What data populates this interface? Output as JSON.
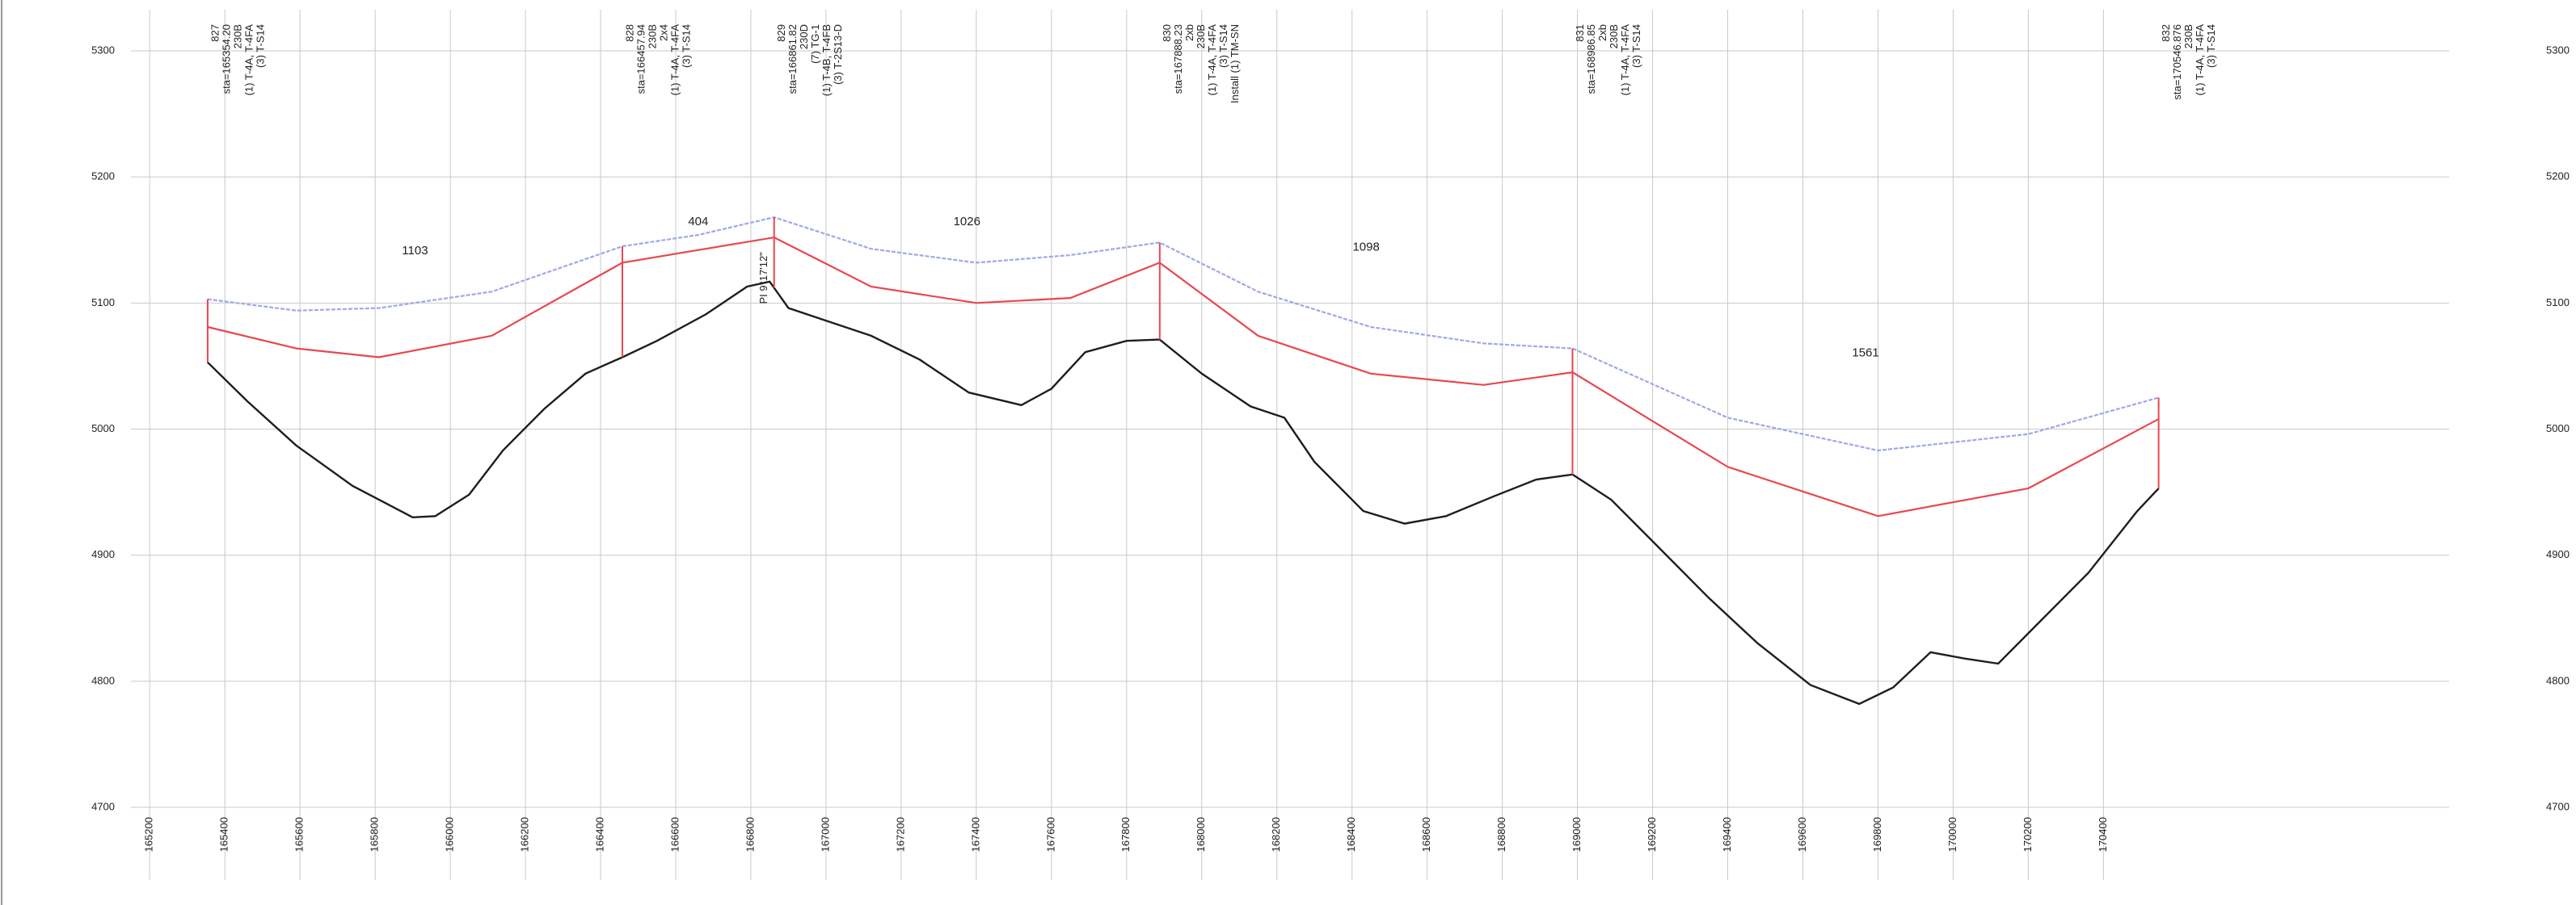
{
  "chart_data": {
    "type": "profile",
    "xlim": [
      165150,
      171320
    ],
    "ylim": [
      4700,
      5300
    ],
    "xticks": [
      165200,
      165400,
      165600,
      165800,
      166000,
      166200,
      166400,
      166600,
      166800,
      167000,
      167200,
      167400,
      167600,
      167800,
      168000,
      168200,
      168400,
      168600,
      168800,
      169000,
      169200,
      169400,
      169600,
      169800,
      170000,
      170200,
      170400
    ],
    "yticks": [
      4700,
      4800,
      4900,
      5000,
      5100,
      5200,
      5300
    ],
    "grid": true,
    "towers": [
      {
        "station": 165354.2,
        "lines": [
          "827",
          "sta=165354.20",
          "230B",
          "(1) T-4A, T-4FA",
          "(3) T-S14"
        ]
      },
      {
        "station": 166457.94,
        "lines": [
          "828",
          "sta=166457.94",
          "230B",
          "2x4",
          "(1) T-4A, T-4FA",
          "(3) T-S14"
        ]
      },
      {
        "station": 166861.82,
        "lines": [
          "829",
          "sta=166861.82",
          "230D",
          "(7) TG-1",
          "(1) T-4B, T-4FB",
          "(3) T-2S13-D"
        ]
      },
      {
        "station": 167888.23,
        "lines": [
          "830",
          "sta=167888.23",
          "2xb",
          "230B",
          "(1) T-4A, T-4FA",
          "(3) T-S14",
          "Install (1) TM-SN"
        ]
      },
      {
        "station": 168986.85,
        "lines": [
          "831",
          "sta=168986.85",
          "2xb",
          "230B",
          "(1) T-4A, T-4FA",
          "(3) T-S14"
        ]
      },
      {
        "station": 170546.876,
        "lines": [
          "832",
          "sta=170546.876",
          "230B",
          "(1) T-4A, T-4FA",
          "(3) T-S14"
        ]
      }
    ],
    "spans": [
      1103,
      404,
      1026,
      1098,
      1561
    ],
    "pi_label": "PI 9°17'12\"",
    "series": [
      {
        "color": "#1e1e1e",
        "x": [
          165354,
          165460,
          165590,
          165740,
          165900,
          165960,
          166050,
          166140,
          166250,
          166360,
          166458,
          166550,
          166680,
          166790,
          166850,
          166900,
          166990,
          167120,
          167250,
          167380,
          167520,
          167600,
          167690,
          167800,
          167888,
          168000,
          168130,
          168220,
          168300,
          168430,
          168540,
          168650,
          168780,
          168890,
          168987,
          169090,
          169220,
          169350,
          169480,
          169620,
          169750,
          169840,
          169940,
          170030,
          170120,
          170230,
          170360,
          170490,
          170547
        ],
        "values": [
          5053,
          5022,
          4987,
          4955,
          4930,
          4931,
          4948,
          4983,
          5016,
          5044,
          5057,
          5070,
          5091,
          5113,
          5117,
          5096,
          5087,
          5074,
          5055,
          5029,
          5019,
          5032,
          5061,
          5070,
          5071,
          5044,
          5018,
          5009,
          4974,
          4935,
          4925,
          4931,
          4947,
          4960,
          4964,
          4944,
          4905,
          4866,
          4830,
          4797,
          4782,
          4795,
          4823,
          4818,
          4814,
          4847,
          4886,
          4935,
          4953
        ]
      },
      {
        "color": "#e8474f",
        "x": [
          165354,
          165590,
          165810,
          166110,
          166458,
          166660,
          166862,
          167120,
          167400,
          167650,
          167888,
          168150,
          168450,
          168750,
          168987,
          169400,
          169800,
          170200,
          170547
        ],
        "values": [
          5081,
          5064,
          5057,
          5074,
          5132,
          5142,
          5152,
          5113,
          5100,
          5104,
          5132,
          5074,
          5044,
          5035,
          5045,
          4970,
          4931,
          4953,
          5008
        ]
      },
      {
        "color": "#9ea8e6",
        "x": [
          165354,
          165590,
          165810,
          166110,
          166458,
          166660,
          166862,
          167120,
          167400,
          167650,
          167888,
          168150,
          168450,
          168750,
          168987,
          169400,
          169800,
          170200,
          170547
        ],
        "values": [
          5103,
          5094,
          5096,
          5109,
          5145,
          5154,
          5168,
          5143,
          5132,
          5138,
          5148,
          5109,
          5081,
          5068,
          5064,
          5009,
          4983,
          4996,
          5025
        ]
      }
    ]
  }
}
